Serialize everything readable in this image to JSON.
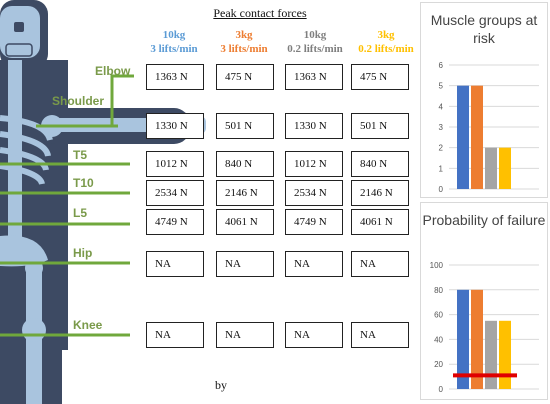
{
  "figure": {
    "title": "Peak contact forces",
    "byline": "by",
    "columns": [
      {
        "weight": "10kg",
        "rate": "3 lifts/min",
        "color": "#5b9bd5"
      },
      {
        "weight": "3kg",
        "rate": "3 lifts/min",
        "color": "#ed7d31"
      },
      {
        "weight": "10kg",
        "rate": "0.2 lifts/min",
        "color": "#7f7f7f"
      },
      {
        "weight": "3kg",
        "rate": "0.2 lifts/min",
        "color": "#ffc000"
      }
    ],
    "joints": [
      "Elbow",
      "Shoulder",
      "T5",
      "T10",
      "L5",
      "Hip",
      "Knee"
    ],
    "rows": [
      {
        "joint": "Elbow",
        "values": [
          "1363 N",
          "475 N",
          "1363 N",
          "475 N"
        ]
      },
      {
        "joint": "Shoulder",
        "values": [
          "1330 N",
          "501 N",
          "1330 N",
          "501 N"
        ]
      },
      {
        "joint": "T5",
        "values": [
          "1012 N",
          "840 N",
          "1012 N",
          "840 N"
        ]
      },
      {
        "joint": "T10",
        "values": [
          "2534 N",
          "2146 N",
          "2534 N",
          "2146 N"
        ]
      },
      {
        "joint": "L5",
        "values": [
          "4749 N",
          "4061 N",
          "4749 N",
          "4061 N"
        ]
      },
      {
        "joint": "Hip",
        "values": [
          "NA",
          "NA",
          "NA",
          "NA"
        ]
      },
      {
        "joint": "Knee",
        "values": [
          "NA",
          "NA",
          "NA",
          "NA"
        ]
      }
    ],
    "joint_line_color": "#70a83c",
    "body_color": "#3d4a63",
    "bone_color": "#a9c4de"
  },
  "chart_data": [
    {
      "type": "bar",
      "title": "Muscle groups at risk",
      "categories": [
        "10kg 3 lifts/min",
        "3kg 3 lifts/min",
        "10kg 0.2 lifts/min",
        "3kg 0.2 lifts/min"
      ],
      "values": [
        5,
        5,
        2,
        2
      ],
      "colors": [
        "#4472c4",
        "#ed7d31",
        "#a5a5a5",
        "#ffc000"
      ],
      "ylim": [
        0,
        6
      ],
      "yticks": [
        0,
        1,
        2,
        3,
        4,
        5,
        6
      ],
      "xlabel": "",
      "ylabel": "",
      "grid": true
    },
    {
      "type": "bar",
      "title": "Probability of failure",
      "categories": [
        "10kg 3 lifts/min",
        "3kg 3 lifts/min",
        "10kg 0.2 lifts/min",
        "3kg 0.2 lifts/min"
      ],
      "values": [
        80,
        80,
        55,
        55
      ],
      "colors": [
        "#4472c4",
        "#ed7d31",
        "#a5a5a5",
        "#ffc000"
      ],
      "ylim": [
        0,
        100
      ],
      "yticks": [
        0,
        20,
        40,
        60,
        80,
        100
      ],
      "threshold": 11,
      "threshold_color": "#e00000",
      "xlabel": "",
      "ylabel": "",
      "grid": true
    }
  ]
}
